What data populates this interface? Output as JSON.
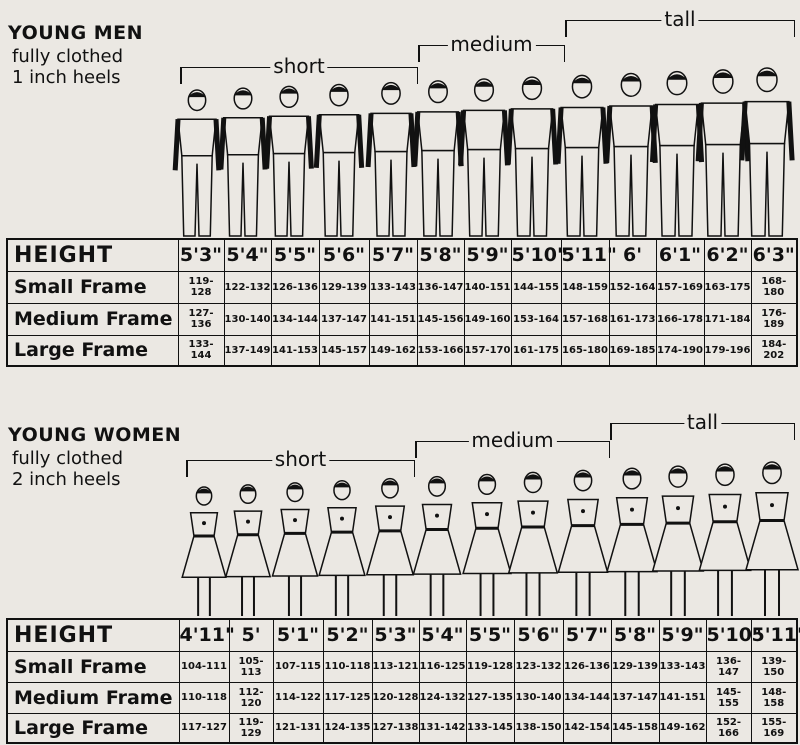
{
  "men": {
    "title": "YOUNG MEN",
    "subtitle_1": "fully clothed",
    "subtitle_2": "1 inch heels",
    "groups": {
      "short": "short",
      "medium": "medium",
      "tall": "tall"
    },
    "table": {
      "header_label": "HEIGHT",
      "heights": [
        "5'3\"",
        "5'4\"",
        "5'5\"",
        "5'6\"",
        "5'7\"",
        "5'8\"",
        "5'9\"",
        "5'10\"",
        "5'11\"",
        "6'",
        "6'1\"",
        "6'2\"",
        "6'3\""
      ],
      "rows": [
        {
          "label": "Small Frame",
          "values": [
            "119-128",
            "122-132",
            "126-136",
            "129-139",
            "133-143",
            "136-147",
            "140-151",
            "144-155",
            "148-159",
            "152-164",
            "157-169",
            "163-175",
            "168-180"
          ]
        },
        {
          "label": "Medium Frame",
          "values": [
            "127-136",
            "130-140",
            "134-144",
            "137-147",
            "141-151",
            "145-156",
            "149-160",
            "153-164",
            "157-168",
            "161-173",
            "166-178",
            "171-184",
            "176-189"
          ]
        },
        {
          "label": "Large Frame",
          "values": [
            "133-144",
            "137-149",
            "141-153",
            "145-157",
            "149-162",
            "153-166",
            "157-170",
            "161-175",
            "165-180",
            "169-185",
            "174-190",
            "179-196",
            "184-202"
          ]
        }
      ]
    }
  },
  "women": {
    "title": "YOUNG WOMEN",
    "subtitle_1": "fully clothed",
    "subtitle_2": "2 inch heels",
    "groups": {
      "short": "short",
      "medium": "medium",
      "tall": "tall"
    },
    "table": {
      "header_label": "HEIGHT",
      "heights": [
        "4'11\"",
        "5'",
        "5'1\"",
        "5'2\"",
        "5'3\"",
        "5'4\"",
        "5'5\"",
        "5'6\"",
        "5'7\"",
        "5'8\"",
        "5'9\"",
        "5'10\"",
        "5'11\""
      ],
      "rows": [
        {
          "label": "Small Frame",
          "values": [
            "104-111",
            "105-113",
            "107-115",
            "110-118",
            "113-121",
            "116-125",
            "119-128",
            "123-132",
            "126-136",
            "129-139",
            "133-143",
            "136-147",
            "139-150"
          ]
        },
        {
          "label": "Medium Frame",
          "values": [
            "110-118",
            "112-120",
            "114-122",
            "117-125",
            "120-128",
            "124-132",
            "127-135",
            "130-140",
            "134-144",
            "137-147",
            "141-151",
            "145-155",
            "148-158"
          ]
        },
        {
          "label": "Large Frame",
          "values": [
            "117-127",
            "119-129",
            "121-131",
            "124-135",
            "127-138",
            "131-142",
            "133-145",
            "138-150",
            "142-154",
            "145-158",
            "149-162",
            "152-166",
            "155-169"
          ]
        }
      ]
    }
  }
}
